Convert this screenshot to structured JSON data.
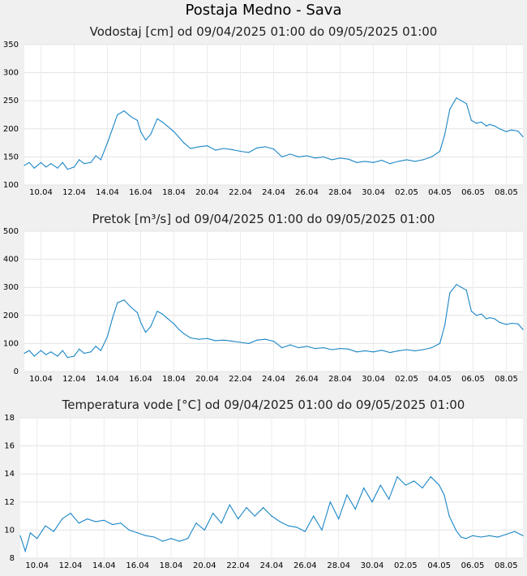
{
  "page_title": "Postaja Medno - Sava",
  "chart_data": [
    {
      "type": "line",
      "title": "Vodostaj [cm] od 09/04/2025 01:00 do 09/05/2025 01:00",
      "ylim": [
        100,
        350
      ],
      "yticks": [
        "100",
        "150",
        "200",
        "250",
        "300",
        "350"
      ],
      "xticks": [
        "10.04",
        "12.04",
        "14.04",
        "16.04",
        "18.04",
        "20.04",
        "22.04",
        "24.04",
        "26.04",
        "28.04",
        "30.04",
        "02.05",
        "04.05",
        "06.05",
        "08.05"
      ],
      "xlim": [
        0,
        30
      ],
      "grid": true,
      "color": "#1a86c6",
      "x": [
        0,
        0.3,
        0.6,
        1,
        1.3,
        1.6,
        2,
        2.3,
        2.6,
        3,
        3.3,
        3.6,
        4,
        4.3,
        4.6,
        5,
        5.3,
        5.6,
        6,
        6.4,
        6.8,
        7,
        7.3,
        7.6,
        8,
        8.3,
        8.6,
        9,
        9.3,
        9.6,
        10,
        10.5,
        11,
        11.5,
        12,
        12.5,
        13,
        13.5,
        14,
        14.5,
        15,
        15.5,
        16,
        16.5,
        17,
        17.5,
        18,
        18.5,
        19,
        19.5,
        20,
        20.5,
        21,
        21.5,
        22,
        22.5,
        23,
        23.5,
        24,
        24.5,
        25,
        25.3,
        25.6,
        26,
        26.3,
        26.6,
        26.9,
        27.2,
        27.5,
        27.8,
        28,
        28.3,
        28.6,
        29,
        29.3,
        29.7,
        30
      ],
      "y": [
        135,
        140,
        130,
        140,
        132,
        138,
        130,
        140,
        128,
        132,
        145,
        138,
        140,
        152,
        145,
        175,
        200,
        225,
        232,
        222,
        215,
        195,
        180,
        190,
        218,
        212,
        205,
        195,
        185,
        175,
        165,
        168,
        170,
        162,
        165,
        163,
        160,
        158,
        166,
        168,
        164,
        150,
        155,
        150,
        152,
        148,
        150,
        145,
        148,
        146,
        140,
        142,
        140,
        144,
        138,
        142,
        145,
        142,
        145,
        150,
        160,
        190,
        235,
        255,
        250,
        245,
        215,
        210,
        212,
        205,
        208,
        205,
        200,
        195,
        198,
        196,
        186
      ]
    },
    {
      "type": "line",
      "title": "Pretok [m³/s] od 09/04/2025 01:00 do 09/05/2025 01:00",
      "ylim": [
        0,
        500
      ],
      "yticks": [
        "0",
        "100",
        "200",
        "300",
        "400",
        "500"
      ],
      "xticks": [
        "10.04",
        "12.04",
        "14.04",
        "16.04",
        "18.04",
        "20.04",
        "22.04",
        "24.04",
        "26.04",
        "28.04",
        "30.04",
        "02.05",
        "04.05",
        "06.05",
        "08.05"
      ],
      "xlim": [
        0,
        30
      ],
      "grid": true,
      "color": "#1a86c6",
      "x": [
        0,
        0.3,
        0.6,
        1,
        1.3,
        1.6,
        2,
        2.3,
        2.6,
        3,
        3.3,
        3.6,
        4,
        4.3,
        4.6,
        5,
        5.3,
        5.6,
        6,
        6.4,
        6.8,
        7,
        7.3,
        7.6,
        8,
        8.3,
        8.6,
        9,
        9.3,
        9.6,
        10,
        10.5,
        11,
        11.5,
        12,
        12.5,
        13,
        13.5,
        14,
        14.5,
        15,
        15.5,
        16,
        16.5,
        17,
        17.5,
        18,
        18.5,
        19,
        19.5,
        20,
        20.5,
        21,
        21.5,
        22,
        22.5,
        23,
        23.5,
        24,
        24.5,
        25,
        25.3,
        25.6,
        26,
        26.3,
        26.6,
        26.9,
        27.2,
        27.5,
        27.8,
        28,
        28.3,
        28.6,
        29,
        29.3,
        29.7,
        30
      ],
      "y": [
        65,
        75,
        55,
        75,
        60,
        70,
        55,
        75,
        50,
        55,
        80,
        65,
        70,
        90,
        75,
        125,
        190,
        245,
        255,
        230,
        210,
        175,
        140,
        160,
        215,
        205,
        190,
        170,
        150,
        135,
        120,
        115,
        118,
        110,
        112,
        108,
        104,
        100,
        112,
        115,
        108,
        85,
        95,
        85,
        90,
        82,
        85,
        78,
        82,
        80,
        70,
        74,
        70,
        76,
        68,
        74,
        78,
        74,
        78,
        85,
        100,
        165,
        280,
        310,
        300,
        290,
        215,
        200,
        205,
        188,
        192,
        188,
        175,
        168,
        172,
        170,
        150
      ]
    },
    {
      "type": "line",
      "title": "Temperatura vode [°C] od 09/04/2025 01:00 do 09/05/2025 01:00",
      "ylim": [
        8,
        18
      ],
      "yticks": [
        "8",
        "10",
        "12",
        "14",
        "16",
        "18"
      ],
      "xticks": [
        "10.04",
        "12.04",
        "14.04",
        "16.04",
        "18.04",
        "20.04",
        "22.04",
        "24.04",
        "26.04",
        "28.04",
        "30.04",
        "02.05",
        "04.05",
        "06.05",
        "08.05"
      ],
      "xlim": [
        0,
        30
      ],
      "grid": true,
      "color": "#1a86c6",
      "x": [
        0,
        0.3,
        0.6,
        1,
        1.5,
        2,
        2.5,
        3,
        3.5,
        4,
        4.5,
        5,
        5.5,
        6,
        6.5,
        7,
        7.5,
        8,
        8.5,
        9,
        9.5,
        10,
        10.5,
        11,
        11.5,
        12,
        12.5,
        13,
        13.5,
        14,
        14.5,
        15,
        15.5,
        16,
        16.5,
        17,
        17.5,
        18,
        18.5,
        19,
        19.5,
        20,
        20.5,
        21,
        21.5,
        22,
        22.5,
        23,
        23.5,
        24,
        24.5,
        25,
        25.3,
        25.6,
        26,
        26.3,
        26.6,
        27,
        27.5,
        28,
        28.5,
        29,
        29.5,
        30
      ],
      "y": [
        9.6,
        8.5,
        9.8,
        9.4,
        10.3,
        9.9,
        10.8,
        11.2,
        10.5,
        10.8,
        10.6,
        10.7,
        10.4,
        10.5,
        10.0,
        9.8,
        9.6,
        9.5,
        9.2,
        9.4,
        9.2,
        9.4,
        10.5,
        10.0,
        11.2,
        10.5,
        11.8,
        10.8,
        11.6,
        11.0,
        11.6,
        11.0,
        10.6,
        10.3,
        10.2,
        9.9,
        11.0,
        10.0,
        12.0,
        10.8,
        12.5,
        11.5,
        13.0,
        12.0,
        13.2,
        12.2,
        13.8,
        13.2,
        13.5,
        13.0,
        13.8,
        13.2,
        12.5,
        11.0,
        10.0,
        9.5,
        9.4,
        9.6,
        9.5,
        9.6,
        9.5,
        9.7,
        9.9,
        9.6
      ]
    }
  ]
}
